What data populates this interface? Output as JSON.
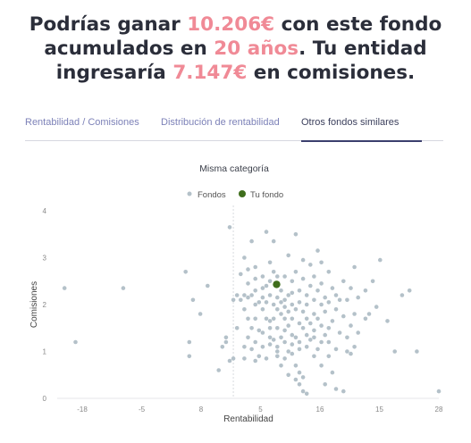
{
  "headline": {
    "line1_before": "Podrías ganar ",
    "line1_amount": "10.206€",
    "line1_after": " con este fondo",
    "line2_before": "acumulados en ",
    "line2_years": "20 años",
    "line2_after": ". Tu entidad",
    "line3_before": "ingresaría ",
    "line3_amount": "7.147€",
    "line3_after": " en comisiones."
  },
  "tabs": [
    {
      "label": "Rentabilidad / Comisiones",
      "active": false
    },
    {
      "label": "Distribución de rentabilidad",
      "active": false
    },
    {
      "label": "Otros fondos similares",
      "active": true
    }
  ],
  "colors": {
    "highlight": "#f08a96",
    "tab_inactive": "#7d82b8",
    "fondos": "#b4c1c9",
    "tu_fondo": "#3f6e1c"
  },
  "chart_data": {
    "type": "scatter",
    "title": "Misma categoría",
    "xlabel": "Rentabilidad",
    "ylabel": "Comisiones",
    "x_tick_labels": [
      "-18",
      "-5",
      "8",
      "5",
      "16",
      "15",
      "28"
    ],
    "y_tick_labels": [
      "0",
      "1",
      "2",
      "3",
      "4"
    ],
    "xlim": [
      -24,
      28
    ],
    "ylim": [
      0,
      4
    ],
    "grid": false,
    "legend_position": "top-center",
    "series": [
      {
        "name": "Fondos",
        "points": [
          [
            -23,
            2.35
          ],
          [
            -21.5,
            1.2
          ],
          [
            -15,
            2.35
          ],
          [
            -6.5,
            2.7
          ],
          [
            -6,
            0.9
          ],
          [
            -6,
            1.2
          ],
          [
            -5.5,
            2.1
          ],
          [
            -4.5,
            1.8
          ],
          [
            -3.5,
            2.4
          ],
          [
            -2,
            0.6
          ],
          [
            -1.5,
            1.1
          ],
          [
            -1,
            1.2
          ],
          [
            -1,
            1.3
          ],
          [
            -0.5,
            3.65
          ],
          [
            -0.5,
            0.8
          ],
          [
            0,
            0.85
          ],
          [
            0,
            2.1
          ],
          [
            0.5,
            1.5
          ],
          [
            0.5,
            2.2
          ],
          [
            1,
            2.1
          ],
          [
            1,
            2.65
          ],
          [
            1.5,
            1.1
          ],
          [
            1.5,
            1.9
          ],
          [
            1.5,
            2.2
          ],
          [
            1.5,
            3
          ],
          [
            1.5,
            0.85
          ],
          [
            2,
            1.3
          ],
          [
            2,
            1.7
          ],
          [
            2,
            2.15
          ],
          [
            2,
            2.45
          ],
          [
            2,
            2.75
          ],
          [
            2.5,
            1.5
          ],
          [
            2.5,
            1.05
          ],
          [
            2.5,
            3.35
          ],
          [
            2.5,
            2.2
          ],
          [
            3,
            0.8
          ],
          [
            3,
            1.2
          ],
          [
            3,
            2
          ],
          [
            3,
            2.3
          ],
          [
            3,
            2.55
          ],
          [
            3,
            2.8
          ],
          [
            3,
            1.7
          ],
          [
            3.5,
            1.45
          ],
          [
            3.5,
            0.9
          ],
          [
            3.5,
            2.05
          ],
          [
            4,
            1.1
          ],
          [
            4,
            1.9
          ],
          [
            4,
            2.15
          ],
          [
            4,
            2.35
          ],
          [
            4,
            2.6
          ],
          [
            4,
            1.4
          ],
          [
            4.5,
            0.85
          ],
          [
            4.5,
            1.7
          ],
          [
            4.5,
            2.4
          ],
          [
            4.5,
            2.05
          ],
          [
            4.5,
            3.55
          ],
          [
            5,
            1.3
          ],
          [
            5,
            1.15
          ],
          [
            5,
            2.2
          ],
          [
            5,
            2.5
          ],
          [
            5,
            1.65
          ],
          [
            5,
            1.5
          ],
          [
            5,
            2.9
          ],
          [
            5.5,
            1.25
          ],
          [
            5.5,
            1.7
          ],
          [
            5.5,
            2
          ],
          [
            5.5,
            2.7
          ],
          [
            5.5,
            3.35
          ],
          [
            6,
            1
          ],
          [
            6,
            1.5
          ],
          [
            6,
            1.9
          ],
          [
            6,
            2.15
          ],
          [
            6,
            2.4
          ],
          [
            6,
            1.1
          ],
          [
            6,
            0.9
          ],
          [
            6,
            2.6
          ],
          [
            6.5,
            1.3
          ],
          [
            6.5,
            1.8
          ],
          [
            6.5,
            2.05
          ],
          [
            6.5,
            2.3
          ],
          [
            6.5,
            0.7
          ],
          [
            7,
            1.45
          ],
          [
            7,
            1.2
          ],
          [
            7,
            1.95
          ],
          [
            7,
            2.1
          ],
          [
            7,
            2.6
          ],
          [
            7,
            1.7
          ],
          [
            7,
            0.85
          ],
          [
            7.5,
            1
          ],
          [
            7.5,
            1.55
          ],
          [
            7.5,
            2.2
          ],
          [
            7.5,
            1.85
          ],
          [
            7.5,
            0.5
          ],
          [
            7.5,
            3.05
          ],
          [
            8,
            1.35
          ],
          [
            8,
            1.15
          ],
          [
            8,
            2
          ],
          [
            8,
            2.5
          ],
          [
            8,
            1.7
          ],
          [
            8,
            0.95
          ],
          [
            8,
            2.25
          ],
          [
            8.5,
            0.4
          ],
          [
            8.5,
            1.3
          ],
          [
            8.5,
            1.9
          ],
          [
            8.5,
            2.7
          ],
          [
            8.5,
            0.7
          ],
          [
            8.5,
            3.5
          ],
          [
            9,
            0.3
          ],
          [
            9,
            1.05
          ],
          [
            9,
            1.6
          ],
          [
            9,
            2.05
          ],
          [
            9,
            2.3
          ],
          [
            9,
            1.2
          ],
          [
            9,
            0.55
          ],
          [
            9.5,
            1.5
          ],
          [
            9.5,
            1.85
          ],
          [
            9.5,
            2.55
          ],
          [
            9.5,
            0.15
          ],
          [
            9.5,
            0.45
          ],
          [
            9.5,
            2.95
          ],
          [
            10,
            1.35
          ],
          [
            10,
            2
          ],
          [
            10,
            2.2
          ],
          [
            10,
            1.7
          ],
          [
            10,
            1.1
          ],
          [
            10,
            0.1
          ],
          [
            10.5,
            1.6
          ],
          [
            10.5,
            2.4
          ],
          [
            10.5,
            1.25
          ],
          [
            10.5,
            2.85
          ],
          [
            11,
            1.3
          ],
          [
            11,
            1.8
          ],
          [
            11,
            2.1
          ],
          [
            11,
            2.6
          ],
          [
            11,
            1.45
          ],
          [
            11,
            0.9
          ],
          [
            11.5,
            1.05
          ],
          [
            11.5,
            1.7
          ],
          [
            11.5,
            2.3
          ],
          [
            11.5,
            3.15
          ],
          [
            12,
            1.2
          ],
          [
            12,
            1.55
          ],
          [
            12,
            2
          ],
          [
            12,
            2.45
          ],
          [
            12,
            0.7
          ],
          [
            12,
            2.9
          ],
          [
            12.5,
            1.35
          ],
          [
            12.5,
            1.85
          ],
          [
            12.5,
            2.15
          ],
          [
            12.5,
            0.3
          ],
          [
            13,
            0.9
          ],
          [
            13,
            1.5
          ],
          [
            13,
            2.05
          ],
          [
            13,
            2.7
          ],
          [
            13,
            1.2
          ],
          [
            13.5,
            1.65
          ],
          [
            13.5,
            2.35
          ],
          [
            13.5,
            0.55
          ],
          [
            14,
            1.05
          ],
          [
            14,
            1.9
          ],
          [
            14,
            2.2
          ],
          [
            14,
            0.2
          ],
          [
            14.5,
            1.4
          ],
          [
            14.5,
            2.1
          ],
          [
            15,
            2.5
          ],
          [
            15,
            1.75
          ],
          [
            15,
            0.15
          ],
          [
            15.5,
            1
          ],
          [
            15.5,
            1.3
          ],
          [
            15.5,
            2.1
          ],
          [
            16,
            0.95
          ],
          [
            16,
            1.55
          ],
          [
            16,
            2.35
          ],
          [
            16.5,
            1.1
          ],
          [
            16.5,
            1.8
          ],
          [
            16.5,
            2.8
          ],
          [
            17,
            2.15
          ],
          [
            17,
            1.4
          ],
          [
            18,
            1.7
          ],
          [
            18,
            2.3
          ],
          [
            18.5,
            1.8
          ],
          [
            19,
            2.5
          ],
          [
            19.5,
            1.95
          ],
          [
            20,
            2.95
          ],
          [
            21,
            1.65
          ],
          [
            23,
            2.2
          ],
          [
            22,
            1
          ],
          [
            24,
            2.3
          ],
          [
            25,
            1
          ],
          [
            28,
            0.15
          ]
        ]
      },
      {
        "name": "Tu fondo",
        "points": [
          [
            5.9,
            2.43
          ]
        ]
      }
    ]
  }
}
